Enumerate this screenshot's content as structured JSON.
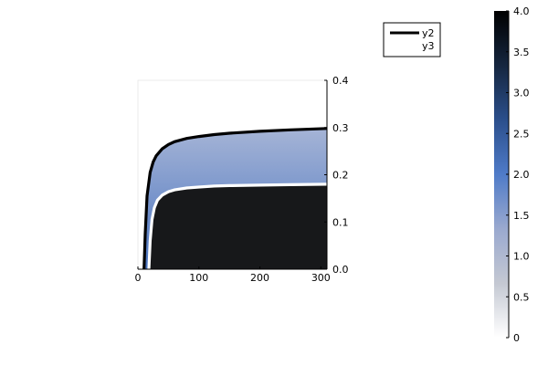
{
  "chart_data": {
    "type": "area",
    "title": "",
    "xlabel": "",
    "ylabel": "",
    "xlim": [
      0,
      310
    ],
    "ylim": [
      0,
      0.4
    ],
    "x_ticks": [
      0,
      100,
      200,
      300
    ],
    "y_ticks": [
      0.0,
      0.1,
      0.2,
      0.3,
      0.4
    ],
    "x_tick_labels": [
      "0",
      "100",
      "200",
      "300"
    ],
    "y_tick_labels": [
      "0.0",
      "0.1",
      "0.2",
      "0.3",
      "0.4"
    ],
    "y_axis_side": "right",
    "grid": false,
    "legend": {
      "position": "top-right",
      "entries": [
        "y2",
        "y3"
      ]
    },
    "series": [
      {
        "name": "y2",
        "color": "#000000",
        "x": [
          10,
          12,
          15,
          20,
          25,
          30,
          40,
          50,
          60,
          80,
          100,
          125,
          150,
          200,
          250,
          310
        ],
        "values": [
          0.0,
          0.075,
          0.155,
          0.205,
          0.227,
          0.24,
          0.255,
          0.264,
          0.27,
          0.277,
          0.281,
          0.285,
          0.288,
          0.292,
          0.295,
          0.298
        ]
      },
      {
        "name": "y3",
        "color": "#ffffff",
        "x": [
          18,
          20,
          23,
          27,
          32,
          40,
          50,
          60,
          80,
          100,
          125,
          150,
          200,
          250,
          310
        ],
        "values": [
          0.0,
          0.06,
          0.105,
          0.13,
          0.146,
          0.157,
          0.164,
          0.168,
          0.172,
          0.174,
          0.176,
          0.177,
          0.178,
          0.179,
          0.18
        ]
      }
    ],
    "fill": {
      "between": "y2 and y3",
      "color_top": "#a5b4d6",
      "color_bottom": "#4a74c0",
      "below_y3_color": "#17181a"
    },
    "colorbar": {
      "range": [
        0,
        4
      ],
      "ticks": [
        0,
        0.5,
        1.0,
        1.5,
        2.0,
        2.5,
        3.0,
        3.5,
        4.0
      ],
      "tick_labels": [
        "0",
        "0.5",
        "1.0",
        "1.5",
        "2.0",
        "2.5",
        "3.0",
        "3.5",
        "4.0"
      ],
      "colors": [
        "#ffffff",
        "#c4c8d2",
        "#9aa9cf",
        "#4f7bc8",
        "#2b4f8c",
        "#15263f",
        "#000000"
      ]
    }
  }
}
